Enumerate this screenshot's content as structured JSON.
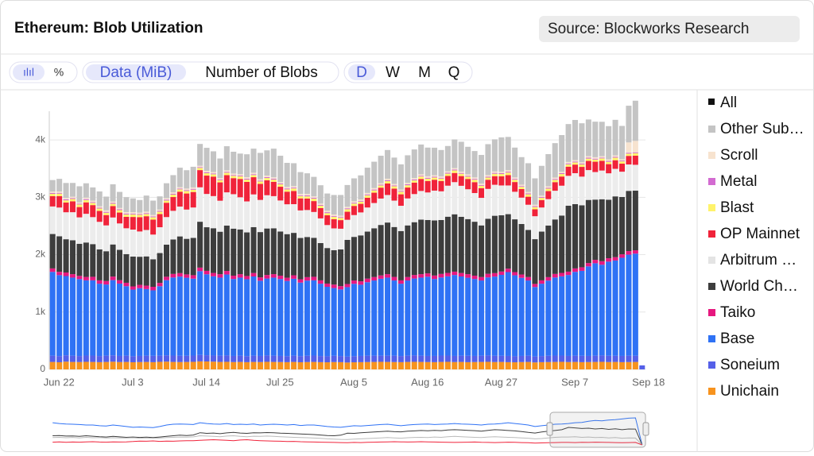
{
  "header": {
    "title": "Ethereum: Blob Utilization",
    "source": "Source: Blockworks Research"
  },
  "toolbar": {
    "icon_bars": "ılıl",
    "icon_percent": "%",
    "modes": [
      "Data (MiB)",
      "Number of Blobs"
    ],
    "periods": [
      "D",
      "W",
      "M",
      "Q"
    ]
  },
  "toggle_all": {
    "label": "All",
    "color": "#111111"
  },
  "chart_data": {
    "type": "bar",
    "stacked": true,
    "watermark": "Blockworks Research",
    "categories": [
      "Jun 22",
      null,
      null,
      null,
      null,
      null,
      null,
      null,
      null,
      null,
      null,
      "Jul 3",
      null,
      null,
      null,
      null,
      null,
      null,
      null,
      null,
      null,
      null,
      "Jul 14",
      null,
      null,
      null,
      null,
      null,
      null,
      null,
      null,
      null,
      null,
      "Jul 25",
      null,
      null,
      null,
      null,
      null,
      null,
      null,
      null,
      null,
      null,
      "Aug 5",
      null,
      null,
      null,
      null,
      null,
      null,
      null,
      null,
      null,
      null,
      "Aug 16",
      null,
      null,
      null,
      null,
      null,
      null,
      null,
      null,
      null,
      null,
      "Aug 27",
      null,
      null,
      null,
      null,
      null,
      null,
      null,
      null,
      null,
      null,
      "Sep 7",
      null,
      null,
      null,
      null,
      null,
      null,
      null,
      null,
      null,
      null,
      "Sep 18"
    ],
    "ylim": [
      0,
      4500
    ],
    "yticks": [
      0,
      {
        "value": 1000,
        "label": "1k"
      },
      {
        "value": 2000,
        "label": "2k"
      },
      {
        "value": 3000,
        "label": "3k"
      },
      {
        "value": 4000,
        "label": "4k"
      }
    ],
    "grid": true,
    "series": [
      {
        "name": "Unichain",
        "color": "#f7931e",
        "values": [
          130,
          125,
          135,
          130,
          128,
          132,
          130,
          126,
          130,
          134,
          128,
          130,
          125,
          128,
          130,
          126,
          132,
          135,
          130,
          128,
          130,
          132,
          140,
          138,
          135,
          130,
          132,
          128,
          130,
          126,
          130,
          128,
          132,
          130,
          128,
          126,
          130,
          125,
          128,
          130,
          126,
          124,
          128,
          126,
          120,
          124,
          126,
          128,
          130,
          132,
          130,
          128,
          126,
          130,
          132,
          130,
          128,
          126,
          130,
          132,
          128,
          130,
          126,
          128,
          130,
          132,
          128,
          130,
          126,
          124,
          128,
          130,
          122,
          126,
          128,
          130,
          132,
          128,
          130,
          126,
          128,
          130,
          132,
          128,
          130,
          126,
          128,
          130,
          0
        ]
      },
      {
        "name": "Soneium",
        "color": "#5560e8",
        "values": [
          110,
          108,
          112,
          110,
          106,
          110,
          112,
          108,
          110,
          112,
          108,
          110,
          106,
          108,
          110,
          112,
          108,
          110,
          112,
          110,
          108,
          110,
          112,
          110,
          108,
          110,
          112,
          108,
          110,
          106,
          110,
          108,
          112,
          110,
          108,
          106,
          110,
          108,
          110,
          112,
          108,
          106,
          110,
          108,
          104,
          108,
          110,
          112,
          110,
          108,
          110,
          112,
          108,
          110,
          112,
          110,
          108,
          110,
          112,
          110,
          108,
          110,
          112,
          108,
          110,
          112,
          110,
          108,
          110,
          106,
          108,
          110,
          104,
          108,
          110,
          112,
          110,
          108,
          110,
          112,
          108,
          110,
          112,
          110,
          108,
          110,
          112,
          108,
          70
        ]
      },
      {
        "name": "Base",
        "color": "#2f72f5",
        "values": [
          1460,
          1410,
          1380,
          1360,
          1340,
          1310,
          1310,
          1260,
          1240,
          1310,
          1260,
          1210,
          1160,
          1180,
          1160,
          1140,
          1210,
          1310,
          1360,
          1380,
          1360,
          1340,
          1460,
          1410,
          1380,
          1360,
          1410,
          1340,
          1360,
          1340,
          1380,
          1310,
          1340,
          1360,
          1340,
          1310,
          1340,
          1280,
          1310,
          1310,
          1260,
          1210,
          1180,
          1160,
          1210,
          1260,
          1240,
          1280,
          1310,
          1340,
          1360,
          1310,
          1260,
          1310,
          1340,
          1360,
          1380,
          1340,
          1360,
          1380,
          1410,
          1380,
          1360,
          1340,
          1310,
          1360,
          1380,
          1410,
          1460,
          1410,
          1360,
          1310,
          1210,
          1260,
          1310,
          1360,
          1380,
          1410,
          1460,
          1480,
          1560,
          1610,
          1580,
          1640,
          1660,
          1710,
          1760,
          1780,
          0
        ]
      },
      {
        "name": "Taiko",
        "color": "#e6187f",
        "values": [
          60,
          58,
          62,
          60,
          56,
          60,
          62,
          58,
          60,
          62,
          58,
          60,
          56,
          58,
          60,
          62,
          58,
          60,
          62,
          60,
          58,
          60,
          62,
          60,
          58,
          60,
          62,
          58,
          60,
          56,
          60,
          58,
          62,
          60,
          58,
          56,
          60,
          58,
          60,
          62,
          58,
          56,
          60,
          58,
          54,
          58,
          60,
          62,
          60,
          58,
          60,
          62,
          58,
          60,
          62,
          60,
          58,
          60,
          62,
          60,
          58,
          60,
          62,
          58,
          60,
          62,
          60,
          58,
          60,
          56,
          58,
          60,
          54,
          58,
          60,
          62,
          60,
          58,
          60,
          62,
          58,
          60,
          62,
          60,
          58,
          60,
          62,
          58,
          0
        ]
      },
      {
        "name": "World Ch…",
        "color": "#3d3d3d",
        "values": [
          600,
          620,
          580,
          590,
          560,
          600,
          570,
          540,
          520,
          560,
          530,
          500,
          520,
          490,
          510,
          480,
          520,
          560,
          600,
          640,
          620,
          650,
          800,
          760,
          780,
          740,
          790,
          820,
          780,
          760,
          800,
          790,
          810,
          800,
          770,
          760,
          740,
          720,
          700,
          680,
          650,
          620,
          600,
          640,
          770,
          760,
          800,
          820,
          850,
          880,
          900,
          870,
          860,
          900,
          920,
          950,
          930,
          960,
          940,
          980,
          1000,
          980,
          960,
          940,
          900,
          960,
          1000,
          980,
          950,
          920,
          880,
          820,
          780,
          850,
          900,
          950,
          1000,
          1150,
          1120,
          1080,
          1100,
          1050,
          1080,
          1020,
          1060,
          1000,
          1050,
          1040,
          0
        ]
      },
      {
        "name": "Arbitrum …",
        "color": "#ececec",
        "values": [
          480,
          500,
          470,
          490,
          460,
          500,
          470,
          480,
          450,
          470,
          460,
          450,
          470,
          440,
          460,
          430,
          450,
          480,
          500,
          520,
          510,
          530,
          600,
          580,
          560,
          540,
          580,
          600,
          560,
          540,
          570,
          560,
          580,
          560,
          540,
          520,
          500,
          480,
          470,
          450,
          430,
          400,
          380,
          360,
          350,
          380,
          400,
          420,
          440,
          460,
          480,
          460,
          440,
          470,
          490,
          500,
          480,
          520,
          500,
          540,
          560,
          540,
          520,
          500,
          480,
          520,
          540,
          520,
          500,
          480,
          460,
          440,
          400,
          420,
          460,
          500,
          520,
          520,
          540,
          500,
          520,
          480,
          500,
          460,
          480,
          440,
          460,
          450,
          0
        ]
      },
      {
        "name": "OP Mainnet",
        "color": "#f0233a",
        "values": [
          180,
          200,
          170,
          190,
          180,
          200,
          210,
          190,
          180,
          200,
          190,
          200,
          220,
          250,
          240,
          260,
          230,
          250,
          240,
          260,
          280,
          270,
          300,
          320,
          340,
          320,
          300,
          280,
          320,
          340,
          300,
          280,
          260,
          250,
          240,
          220,
          230,
          210,
          200,
          190,
          180,
          170,
          160,
          150,
          140,
          160,
          150,
          170,
          180,
          190,
          200,
          210,
          200,
          190,
          200,
          210,
          200,
          190,
          180,
          170,
          160,
          170,
          180,
          190,
          170,
          160,
          150,
          160,
          180,
          170,
          150,
          140,
          120,
          130,
          140,
          150,
          160,
          160,
          150,
          170,
          160,
          180,
          170,
          160,
          150,
          140,
          150,
          160,
          0
        ]
      },
      {
        "name": "Blast",
        "color": "#fff36b",
        "values": [
          40,
          42,
          38,
          40,
          44,
          40,
          38,
          42,
          40,
          38,
          42,
          40,
          44,
          40,
          38,
          42,
          40,
          38,
          42,
          40,
          44,
          40,
          38,
          42,
          40,
          38,
          42,
          40,
          44,
          40,
          38,
          42,
          40,
          38,
          42,
          40,
          44,
          40,
          38,
          42,
          40,
          38,
          42,
          40,
          44,
          40,
          38,
          42,
          40,
          38,
          42,
          40,
          44,
          40,
          38,
          42,
          40,
          38,
          42,
          40,
          44,
          40,
          38,
          42,
          40,
          38,
          42,
          40,
          44,
          40,
          38,
          42,
          40,
          38,
          42,
          40,
          44,
          40,
          38,
          42,
          40,
          38,
          42,
          40,
          44,
          40,
          38,
          42,
          0
        ]
      },
      {
        "name": "Metal",
        "color": "#d36bd1",
        "values": [
          15,
          14,
          16,
          15,
          14,
          16,
          15,
          14,
          16,
          15,
          14,
          16,
          15,
          14,
          16,
          15,
          14,
          16,
          15,
          14,
          16,
          15,
          14,
          16,
          15,
          14,
          16,
          15,
          14,
          16,
          15,
          14,
          16,
          15,
          14,
          16,
          15,
          14,
          16,
          15,
          14,
          16,
          15,
          14,
          16,
          15,
          14,
          16,
          15,
          14,
          16,
          15,
          14,
          16,
          15,
          14,
          16,
          15,
          14,
          16,
          15,
          14,
          16,
          15,
          14,
          16,
          15,
          14,
          16,
          15,
          14,
          16,
          15,
          14,
          16,
          15,
          14,
          16,
          15,
          14,
          16,
          15,
          14,
          16,
          15,
          14,
          16,
          15,
          0
        ]
      },
      {
        "name": "Scroll",
        "color": "#f7e3cf",
        "values": [
          25,
          24,
          26,
          25,
          24,
          26,
          25,
          24,
          26,
          25,
          24,
          26,
          25,
          24,
          26,
          25,
          24,
          26,
          25,
          24,
          26,
          25,
          24,
          26,
          25,
          24,
          26,
          25,
          24,
          26,
          25,
          24,
          26,
          25,
          24,
          26,
          25,
          24,
          26,
          25,
          24,
          26,
          25,
          24,
          26,
          25,
          24,
          26,
          25,
          24,
          26,
          25,
          24,
          26,
          25,
          24,
          26,
          25,
          24,
          26,
          25,
          24,
          26,
          25,
          24,
          26,
          25,
          24,
          26,
          25,
          24,
          26,
          25,
          24,
          26,
          25,
          24,
          26,
          25,
          24,
          26,
          25,
          24,
          26,
          25,
          24,
          180,
          200,
          0
        ]
      },
      {
        "name": "Other Sub…",
        "color": "#c4c4c4",
        "values": [
          200,
          220,
          260,
          240,
          280,
          250,
          230,
          260,
          240,
          300,
          280,
          260,
          240,
          220,
          280,
          250,
          230,
          260,
          300,
          340,
          320,
          360,
          380,
          400,
          360,
          340,
          420,
          380,
          360,
          400,
          420,
          460,
          440,
          500,
          460,
          420,
          400,
          380,
          360,
          340,
          320,
          300,
          340,
          360,
          380,
          400,
          420,
          440,
          460,
          480,
          500,
          460,
          440,
          480,
          500,
          520,
          500,
          480,
          460,
          440,
          500,
          520,
          480,
          460,
          500,
          540,
          560,
          600,
          580,
          520,
          480,
          500,
          460,
          520,
          560,
          600,
          640,
          660,
          700,
          680,
          640,
          620,
          600,
          580,
          620,
          580,
          640,
          700,
          0
        ]
      }
    ]
  }
}
